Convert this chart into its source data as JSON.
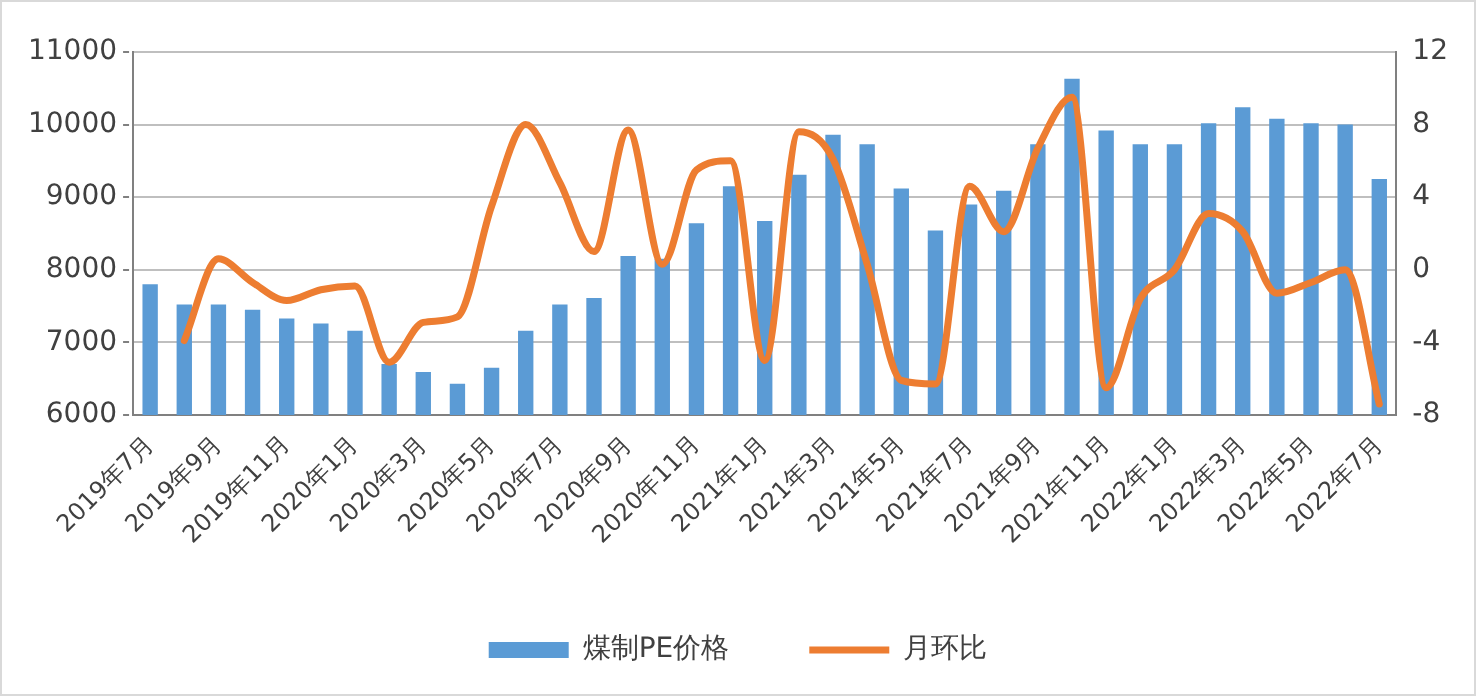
{
  "chart_data": {
    "type": "bar",
    "categories": [
      "2019年7月",
      null,
      "2019年9月",
      null,
      "2019年11月",
      null,
      "2020年1月",
      null,
      "2020年3月",
      null,
      "2020年5月",
      null,
      "2020年7月",
      null,
      "2020年9月",
      null,
      "2020年11月",
      null,
      "2021年1月",
      null,
      "2021年3月",
      null,
      "2021年5月",
      null,
      "2021年7月",
      null,
      "2021年9月",
      null,
      "2021年11月",
      null,
      "2022年1月",
      null,
      "2022年3月",
      null,
      "2022年5月",
      null,
      "2022年7月"
    ],
    "series": [
      {
        "name": "煤制PE价格",
        "color": "#5b9bd5",
        "values": [
          7800,
          7520,
          7520,
          7450,
          7330,
          7260,
          7160,
          6700,
          6590,
          6430,
          6650,
          7160,
          7520,
          7610,
          8190,
          8150,
          8640,
          9150,
          8670,
          9310,
          9860,
          9730,
          9120,
          8540,
          8900,
          9090,
          9730,
          10630,
          9920,
          9730,
          9730,
          10020,
          10240,
          10080,
          10020,
          10000,
          9250
        ]
      },
      {
        "type": "line",
        "name": "月环比",
        "color": "#ed7d31",
        "axis": "y2",
        "values": [
          null,
          -3.9,
          0.6,
          -0.7,
          -1.7,
          -1.1,
          -0.9,
          -5.1,
          -2.9,
          -2.6,
          3.5,
          8,
          4.8,
          1,
          7.7,
          0.3,
          5.5,
          6,
          -5,
          7.6,
          6.1,
          0.3,
          -6.1,
          -6.3,
          4.6,
          2.1,
          6.7,
          9.5,
          -6.5,
          -1.6,
          0,
          3.1,
          2.1,
          -1.3,
          -0.7,
          0,
          -7.4
        ]
      }
    ],
    "ylim": [
      6000,
      11000
    ],
    "yticks": [
      6000,
      7000,
      8000,
      9000,
      10000,
      11000
    ],
    "y2lim": [
      -8,
      12
    ],
    "y2ticks": [
      -8,
      -4,
      0,
      4,
      8,
      12
    ],
    "grid": "y",
    "legend": "bottom"
  }
}
